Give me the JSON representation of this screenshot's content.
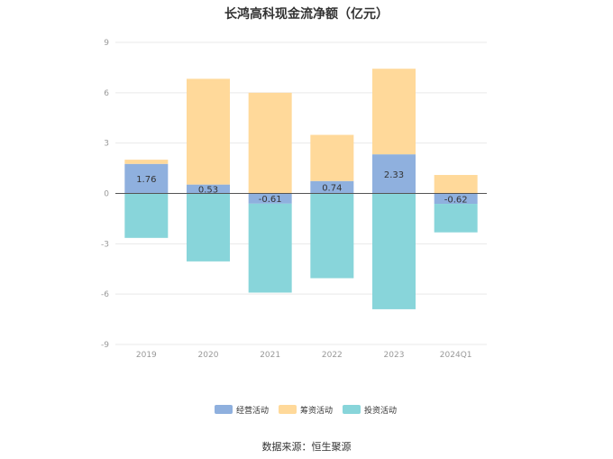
{
  "title": "长鸿高科现金流净额（亿元）",
  "source": "数据来源：恒生聚源",
  "colors": {
    "operating": "#8fb0de",
    "financing": "#ffd99a",
    "investing": "#88d5da",
    "grid": "#e9e9e9",
    "zero_line": "#555555"
  },
  "chart_data": {
    "type": "bar",
    "stacked": true,
    "categories": [
      "2019",
      "2020",
      "2021",
      "2022",
      "2023",
      "2024Q1"
    ],
    "series": [
      {
        "name": "经营活动",
        "values": [
          1.76,
          0.53,
          -0.61,
          0.74,
          2.33,
          -0.62
        ]
      },
      {
        "name": "筹资活动",
        "values": [
          0.25,
          6.3,
          6.0,
          2.75,
          5.1,
          1.1
        ]
      },
      {
        "name": "投资活动",
        "values": [
          -2.65,
          -4.05,
          -5.3,
          -5.05,
          -6.9,
          -1.7
        ]
      }
    ],
    "data_labels": [
      "1.76",
      "0.53",
      "-0.61",
      "0.74",
      "2.33",
      "-0.62"
    ],
    "ylim": [
      -9,
      9
    ],
    "yticks": [
      9,
      6,
      3,
      0,
      -3,
      -6,
      -9
    ],
    "grid": true,
    "legend_position": "bottom"
  }
}
